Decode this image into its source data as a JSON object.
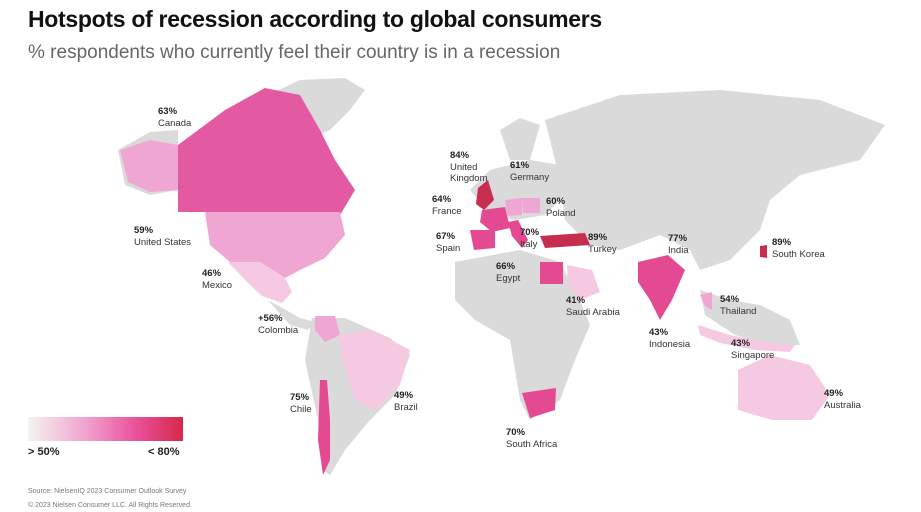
{
  "header": {
    "title": "Hotspots of recession according to global consumers",
    "subtitle": "% respondents who currently feel their country is in a recession"
  },
  "legend": {
    "min_label": "> 50%",
    "max_label": "< 80%"
  },
  "footer": {
    "source": "Source: NielsenIQ 2023 Consumer Outlook Survey",
    "copyright": "© 2023 Nielsen Consumer LLC. All Rights Reserved."
  },
  "colors": {
    "land": "#dadada",
    "low": "#f3bfdd",
    "mid": "#ec5fa6",
    "high": "#d7284a"
  },
  "countries": [
    {
      "id": "canada",
      "name": "Canada",
      "pct": "63%"
    },
    {
      "id": "united-states",
      "name": "United States",
      "pct": "59%"
    },
    {
      "id": "mexico",
      "name": "Mexico",
      "pct": "46%"
    },
    {
      "id": "colombia",
      "name": "Colombia",
      "pct": "+56%"
    },
    {
      "id": "chile",
      "name": "Chile",
      "pct": "75%"
    },
    {
      "id": "brazil",
      "name": "Brazil",
      "pct": "49%"
    },
    {
      "id": "united-kingdom",
      "name": "United\nKingdom",
      "pct": "84%"
    },
    {
      "id": "germany",
      "name": "Germany",
      "pct": "61%"
    },
    {
      "id": "france",
      "name": "France",
      "pct": "64%"
    },
    {
      "id": "poland",
      "name": "Poland",
      "pct": "60%"
    },
    {
      "id": "spain",
      "name": "Spain",
      "pct": "67%"
    },
    {
      "id": "italy",
      "name": "Italy",
      "pct": "70%"
    },
    {
      "id": "turkey",
      "name": "Turkey",
      "pct": "89%"
    },
    {
      "id": "egypt",
      "name": "Egypt",
      "pct": "66%"
    },
    {
      "id": "saudi-arabia",
      "name": "Saudi Arabia",
      "pct": "41%"
    },
    {
      "id": "india",
      "name": "India",
      "pct": "77%"
    },
    {
      "id": "south-korea",
      "name": "South Korea",
      "pct": "89%"
    },
    {
      "id": "thailand",
      "name": "Thailand",
      "pct": "54%"
    },
    {
      "id": "indonesia",
      "name": "Indonesia",
      "pct": "43%"
    },
    {
      "id": "singapore",
      "name": "Singapore",
      "pct": "43%"
    },
    {
      "id": "australia",
      "name": "Australia",
      "pct": "49%"
    },
    {
      "id": "south-africa",
      "name": "South Africa",
      "pct": "70%"
    }
  ]
}
